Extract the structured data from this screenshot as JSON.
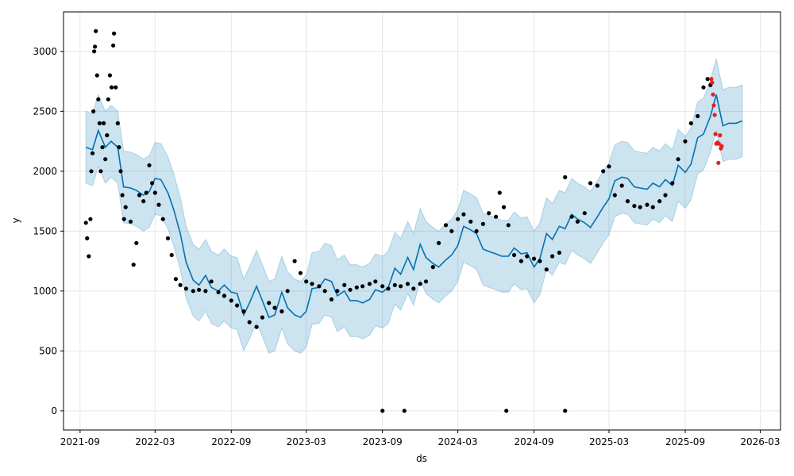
{
  "chart_data": {
    "type": "line",
    "title": "",
    "xlabel": "ds",
    "ylabel": "y",
    "xlim": [
      "2021-07-23",
      "2026-04-19"
    ],
    "ylim": [
      -160,
      3330
    ],
    "grid": true,
    "x_ticks": [
      "2021-09",
      "2022-03",
      "2022-09",
      "2023-03",
      "2023-09",
      "2024-03",
      "2024-09",
      "2025-03",
      "2025-09",
      "2026-03"
    ],
    "y_ticks": [
      0,
      500,
      1000,
      1500,
      2000,
      2500,
      3000
    ],
    "colors": {
      "forecast_line": "#0072B2",
      "uncertainty_band": "#0072B2",
      "observed_points": "#000000",
      "test_points": "#e8201f"
    },
    "series": [
      {
        "role": "forecast",
        "points": [
          [
            "2021-09-15",
            2200
          ],
          [
            "2021-10-01",
            2180
          ],
          [
            "2021-10-15",
            2340
          ],
          [
            "2021-11-01",
            2200
          ],
          [
            "2021-11-15",
            2250
          ],
          [
            "2021-12-01",
            2200
          ],
          [
            "2021-12-15",
            1870
          ],
          [
            "2022-01-01",
            1860
          ],
          [
            "2022-01-15",
            1840
          ],
          [
            "2022-02-01",
            1800
          ],
          [
            "2022-02-15",
            1830
          ],
          [
            "2022-03-01",
            1940
          ],
          [
            "2022-03-15",
            1930
          ],
          [
            "2022-04-01",
            1820
          ],
          [
            "2022-04-15",
            1680
          ],
          [
            "2022-05-01",
            1480
          ],
          [
            "2022-05-15",
            1240
          ],
          [
            "2022-06-01",
            1090
          ],
          [
            "2022-06-15",
            1050
          ],
          [
            "2022-07-01",
            1130
          ],
          [
            "2022-07-15",
            1030
          ],
          [
            "2022-08-01",
            1000
          ],
          [
            "2022-08-15",
            1050
          ],
          [
            "2022-09-01",
            990
          ],
          [
            "2022-09-15",
            980
          ],
          [
            "2022-10-01",
            800
          ],
          [
            "2022-10-15",
            900
          ],
          [
            "2022-11-01",
            1040
          ],
          [
            "2022-11-15",
            920
          ],
          [
            "2022-12-01",
            780
          ],
          [
            "2022-12-15",
            800
          ],
          [
            "2023-01-01",
            990
          ],
          [
            "2023-01-15",
            860
          ],
          [
            "2023-02-01",
            800
          ],
          [
            "2023-02-15",
            780
          ],
          [
            "2023-03-01",
            830
          ],
          [
            "2023-03-15",
            1020
          ],
          [
            "2023-04-01",
            1030
          ],
          [
            "2023-04-15",
            1100
          ],
          [
            "2023-05-01",
            1080
          ],
          [
            "2023-05-15",
            960
          ],
          [
            "2023-06-01",
            1000
          ],
          [
            "2023-06-15",
            920
          ],
          [
            "2023-07-01",
            920
          ],
          [
            "2023-07-15",
            900
          ],
          [
            "2023-08-01",
            930
          ],
          [
            "2023-08-15",
            1010
          ],
          [
            "2023-09-01",
            990
          ],
          [
            "2023-09-15",
            1030
          ],
          [
            "2023-10-01",
            1190
          ],
          [
            "2023-10-15",
            1140
          ],
          [
            "2023-11-01",
            1280
          ],
          [
            "2023-11-15",
            1180
          ],
          [
            "2023-12-01",
            1390
          ],
          [
            "2023-12-15",
            1280
          ],
          [
            "2024-01-01",
            1230
          ],
          [
            "2024-01-15",
            1200
          ],
          [
            "2024-02-01",
            1260
          ],
          [
            "2024-02-15",
            1300
          ],
          [
            "2024-03-01",
            1380
          ],
          [
            "2024-03-15",
            1540
          ],
          [
            "2024-04-01",
            1510
          ],
          [
            "2024-04-15",
            1480
          ],
          [
            "2024-05-01",
            1350
          ],
          [
            "2024-05-15",
            1330
          ],
          [
            "2024-06-01",
            1310
          ],
          [
            "2024-06-15",
            1290
          ],
          [
            "2024-07-01",
            1290
          ],
          [
            "2024-07-15",
            1360
          ],
          [
            "2024-08-01",
            1310
          ],
          [
            "2024-08-15",
            1320
          ],
          [
            "2024-09-01",
            1200
          ],
          [
            "2024-09-15",
            1270
          ],
          [
            "2024-10-01",
            1480
          ],
          [
            "2024-10-15",
            1430
          ],
          [
            "2024-11-01",
            1540
          ],
          [
            "2024-11-15",
            1520
          ],
          [
            "2024-12-01",
            1640
          ],
          [
            "2024-12-15",
            1600
          ],
          [
            "2025-01-01",
            1570
          ],
          [
            "2025-01-15",
            1530
          ],
          [
            "2025-02-01",
            1620
          ],
          [
            "2025-02-15",
            1700
          ],
          [
            "2025-03-01",
            1770
          ],
          [
            "2025-03-15",
            1920
          ],
          [
            "2025-04-01",
            1950
          ],
          [
            "2025-04-15",
            1940
          ],
          [
            "2025-05-01",
            1870
          ],
          [
            "2025-05-15",
            1860
          ],
          [
            "2025-06-01",
            1850
          ],
          [
            "2025-06-15",
            1900
          ],
          [
            "2025-07-01",
            1870
          ],
          [
            "2025-07-15",
            1930
          ],
          [
            "2025-08-01",
            1880
          ],
          [
            "2025-08-15",
            2050
          ],
          [
            "2025-09-01",
            1990
          ],
          [
            "2025-09-15",
            2060
          ],
          [
            "2025-10-01",
            2280
          ],
          [
            "2025-10-15",
            2310
          ],
          [
            "2025-11-01",
            2460
          ],
          [
            "2025-11-15",
            2640
          ],
          [
            "2025-12-01",
            2380
          ],
          [
            "2025-12-15",
            2400
          ],
          [
            "2026-01-01",
            2400
          ],
          [
            "2026-01-17",
            2420
          ]
        ],
        "band_half_width": 300
      },
      {
        "role": "observed",
        "points": [
          [
            "2021-09-15",
            1570
          ],
          [
            "2021-09-18",
            1440
          ],
          [
            "2021-09-22",
            1290
          ],
          [
            "2021-09-26",
            1600
          ],
          [
            "2021-09-28",
            2000
          ],
          [
            "2021-10-01",
            2150
          ],
          [
            "2021-10-03",
            2500
          ],
          [
            "2021-10-05",
            3000
          ],
          [
            "2021-10-07",
            3040
          ],
          [
            "2021-10-09",
            3170
          ],
          [
            "2021-10-12",
            2800
          ],
          [
            "2021-10-15",
            2600
          ],
          [
            "2021-10-18",
            2400
          ],
          [
            "2021-10-21",
            2000
          ],
          [
            "2021-10-25",
            2200
          ],
          [
            "2021-10-28",
            2400
          ],
          [
            "2021-11-01",
            2100
          ],
          [
            "2021-11-05",
            2300
          ],
          [
            "2021-11-08",
            2600
          ],
          [
            "2021-11-12",
            2800
          ],
          [
            "2021-11-16",
            2700
          ],
          [
            "2021-11-20",
            3050
          ],
          [
            "2021-11-22",
            3150
          ],
          [
            "2021-11-26",
            2700
          ],
          [
            "2021-12-01",
            2400
          ],
          [
            "2021-12-04",
            2200
          ],
          [
            "2021-12-08",
            2000
          ],
          [
            "2021-12-12",
            1800
          ],
          [
            "2021-12-16",
            1600
          ],
          [
            "2021-12-20",
            1700
          ],
          [
            "2022-01-01",
            1580
          ],
          [
            "2022-01-08",
            1220
          ],
          [
            "2022-01-15",
            1400
          ],
          [
            "2022-01-22",
            1800
          ],
          [
            "2022-02-01",
            1750
          ],
          [
            "2022-02-08",
            1820
          ],
          [
            "2022-02-15",
            2050
          ],
          [
            "2022-02-22",
            1900
          ],
          [
            "2022-03-01",
            1820
          ],
          [
            "2022-03-10",
            1720
          ],
          [
            "2022-03-20",
            1600
          ],
          [
            "2022-04-01",
            1440
          ],
          [
            "2022-04-10",
            1300
          ],
          [
            "2022-04-20",
            1100
          ],
          [
            "2022-05-01",
            1050
          ],
          [
            "2022-05-15",
            1020
          ],
          [
            "2022-06-01",
            1000
          ],
          [
            "2022-06-15",
            1010
          ],
          [
            "2022-07-01",
            1000
          ],
          [
            "2022-07-15",
            1080
          ],
          [
            "2022-08-01",
            990
          ],
          [
            "2022-08-15",
            960
          ],
          [
            "2022-09-01",
            920
          ],
          [
            "2022-09-15",
            880
          ],
          [
            "2022-10-01",
            830
          ],
          [
            "2022-10-15",
            740
          ],
          [
            "2022-11-01",
            700
          ],
          [
            "2022-11-15",
            780
          ],
          [
            "2022-12-01",
            900
          ],
          [
            "2022-12-15",
            860
          ],
          [
            "2023-01-01",
            830
          ],
          [
            "2023-01-15",
            1000
          ],
          [
            "2023-02-01",
            1250
          ],
          [
            "2023-02-15",
            1150
          ],
          [
            "2023-03-01",
            1080
          ],
          [
            "2023-03-15",
            1060
          ],
          [
            "2023-04-01",
            1040
          ],
          [
            "2023-04-15",
            1000
          ],
          [
            "2023-05-01",
            930
          ],
          [
            "2023-05-15",
            1000
          ],
          [
            "2023-06-01",
            1050
          ],
          [
            "2023-06-15",
            1010
          ],
          [
            "2023-07-01",
            1030
          ],
          [
            "2023-07-15",
            1040
          ],
          [
            "2023-08-01",
            1060
          ],
          [
            "2023-08-15",
            1080
          ],
          [
            "2023-09-01",
            1040
          ],
          [
            "2023-09-15",
            1020
          ],
          [
            "2023-10-01",
            1050
          ],
          [
            "2023-10-15",
            1040
          ],
          [
            "2023-11-01",
            1060
          ],
          [
            "2023-11-15",
            1020
          ],
          [
            "2023-12-01",
            1060
          ],
          [
            "2023-12-15",
            1080
          ],
          [
            "2024-01-01",
            1200
          ],
          [
            "2024-01-15",
            1400
          ],
          [
            "2024-02-01",
            1550
          ],
          [
            "2024-02-15",
            1500
          ],
          [
            "2024-03-01",
            1600
          ],
          [
            "2024-03-15",
            1640
          ],
          [
            "2024-04-01",
            1580
          ],
          [
            "2024-04-15",
            1500
          ],
          [
            "2024-05-01",
            1560
          ],
          [
            "2024-05-15",
            1650
          ],
          [
            "2024-06-01",
            1620
          ],
          [
            "2024-06-10",
            1820
          ],
          [
            "2024-06-20",
            1700
          ],
          [
            "2024-07-01",
            1550
          ],
          [
            "2024-07-15",
            1300
          ],
          [
            "2024-08-01",
            1250
          ],
          [
            "2024-08-15",
            1290
          ],
          [
            "2024-09-01",
            1270
          ],
          [
            "2024-09-15",
            1250
          ],
          [
            "2024-10-01",
            1180
          ],
          [
            "2024-10-15",
            1290
          ],
          [
            "2024-11-01",
            1320
          ],
          [
            "2024-11-15",
            1950
          ],
          [
            "2024-12-01",
            1620
          ],
          [
            "2024-12-15",
            1580
          ],
          [
            "2025-01-01",
            1650
          ],
          [
            "2025-01-15",
            1900
          ],
          [
            "2025-02-01",
            1880
          ],
          [
            "2025-02-15",
            2000
          ],
          [
            "2025-03-01",
            2040
          ],
          [
            "2025-03-15",
            1800
          ],
          [
            "2025-04-01",
            1880
          ],
          [
            "2025-04-15",
            1750
          ],
          [
            "2025-05-01",
            1710
          ],
          [
            "2025-05-15",
            1700
          ],
          [
            "2025-06-01",
            1720
          ],
          [
            "2025-06-15",
            1700
          ],
          [
            "2025-07-01",
            1750
          ],
          [
            "2025-07-15",
            1800
          ],
          [
            "2025-08-01",
            1900
          ],
          [
            "2025-08-15",
            2100
          ],
          [
            "2025-09-01",
            2250
          ],
          [
            "2025-09-15",
            2400
          ],
          [
            "2025-10-01",
            2460
          ],
          [
            "2025-10-15",
            2700
          ],
          [
            "2025-10-25",
            2770
          ],
          [
            "2025-11-01",
            2720
          ],
          [
            "2023-09-01",
            0
          ],
          [
            "2023-10-24",
            0
          ],
          [
            "2024-06-26",
            0
          ],
          [
            "2024-11-15",
            0
          ]
        ]
      },
      {
        "role": "test",
        "points": [
          [
            "2025-11-03",
            2770
          ],
          [
            "2025-11-05",
            2740
          ],
          [
            "2025-11-07",
            2640
          ],
          [
            "2025-11-09",
            2550
          ],
          [
            "2025-11-11",
            2470
          ],
          [
            "2025-11-13",
            2310
          ],
          [
            "2025-11-15",
            2230
          ],
          [
            "2025-11-18",
            2240
          ],
          [
            "2025-11-21",
            2230
          ],
          [
            "2025-11-24",
            2300
          ],
          [
            "2025-11-26",
            2190
          ],
          [
            "2025-11-28",
            2210
          ],
          [
            "2025-11-20",
            2070
          ]
        ]
      }
    ]
  }
}
